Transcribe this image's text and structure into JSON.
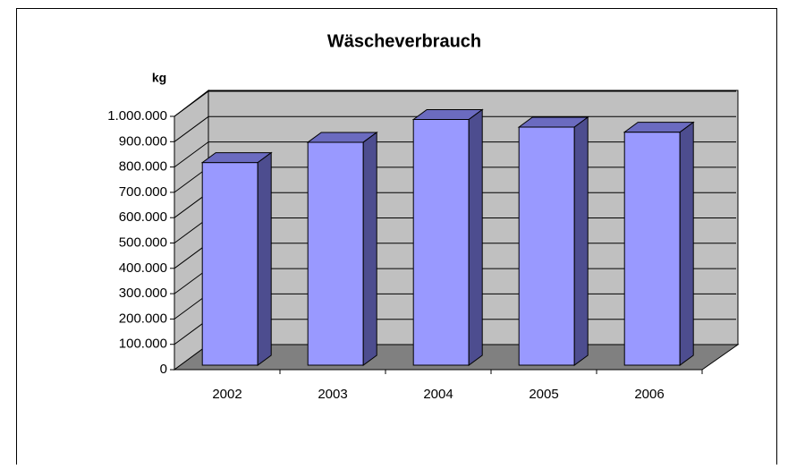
{
  "chart_data": {
    "type": "bar3d",
    "title": "Wäscheverbrauch",
    "y_label": "kg",
    "categories": [
      "2002",
      "2003",
      "2004",
      "2005",
      "2006"
    ],
    "values": [
      800000,
      880000,
      970000,
      940000,
      920000
    ],
    "color": "#9999ff",
    "ylim": [
      0,
      1000000
    ],
    "yticks": [
      0,
      {
        "value": 100000,
        "label": "100.000"
      },
      {
        "value": 200000,
        "label": "200.000"
      },
      {
        "value": 300000,
        "label": "300.000"
      },
      {
        "value": 400000,
        "label": "400.000"
      },
      {
        "value": 500000,
        "label": "500.000"
      },
      {
        "value": 600000,
        "label": "600.000"
      },
      {
        "value": 700000,
        "label": "700.000"
      },
      {
        "value": 800000,
        "label": "800.000"
      },
      {
        "value": 900000,
        "label": "900.000"
      },
      {
        "value": 1000000,
        "label": "1.000.000"
      }
    ],
    "grid": true
  }
}
